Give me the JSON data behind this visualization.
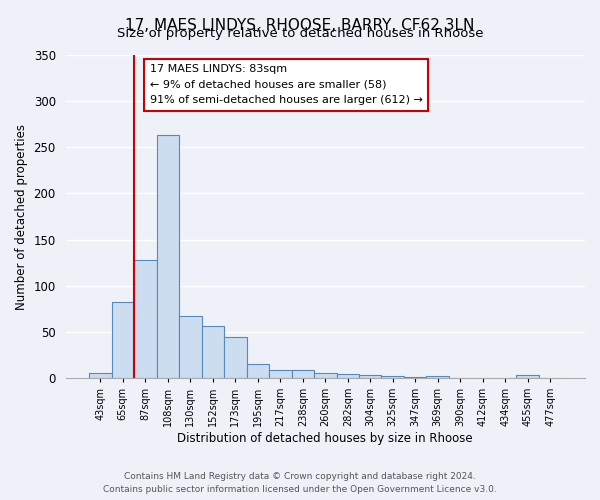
{
  "title1": "17, MAES LINDYS, RHOOSE, BARRY, CF62 3LN",
  "title2": "Size of property relative to detached houses in Rhoose",
  "xlabel": "Distribution of detached houses by size in Rhoose",
  "ylabel": "Number of detached properties",
  "bar_labels": [
    "43sqm",
    "65sqm",
    "87sqm",
    "108sqm",
    "130sqm",
    "152sqm",
    "173sqm",
    "195sqm",
    "217sqm",
    "238sqm",
    "260sqm",
    "282sqm",
    "304sqm",
    "325sqm",
    "347sqm",
    "369sqm",
    "390sqm",
    "412sqm",
    "434sqm",
    "455sqm",
    "477sqm"
  ],
  "bar_heights": [
    6,
    82,
    128,
    263,
    67,
    56,
    45,
    15,
    9,
    9,
    6,
    4,
    3,
    2,
    1,
    2,
    0,
    0,
    0,
    3,
    0
  ],
  "bar_color": "#ccddf0",
  "bar_edge_color": "#5588bb",
  "vline_color": "#cc0000",
  "vline_x_index": 2,
  "ylim": [
    0,
    350
  ],
  "yticks": [
    0,
    50,
    100,
    150,
    200,
    250,
    300,
    350
  ],
  "annotation_text": "17 MAES LINDYS: 83sqm\n← 9% of detached houses are smaller (58)\n91% of semi-detached houses are larger (612) →",
  "annotation_box_color": "#ffffff",
  "annotation_box_edge": "#cc0000",
  "footer1": "Contains HM Land Registry data © Crown copyright and database right 2024.",
  "footer2": "Contains public sector information licensed under the Open Government Licence v3.0.",
  "bg_color": "#eef2f8",
  "grid_color": "#ffffff",
  "title1_fontsize": 11,
  "title2_fontsize": 9.5
}
